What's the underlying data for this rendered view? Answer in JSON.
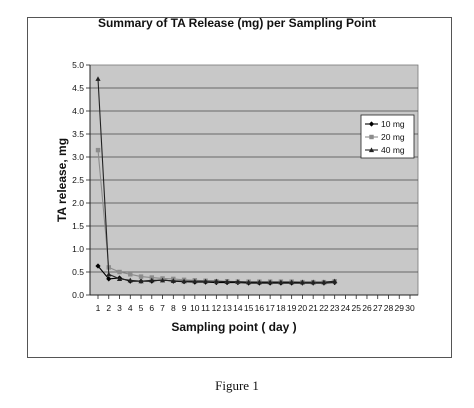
{
  "figure_caption": "Figure 1",
  "chart_data": {
    "type": "line",
    "title": "Summary of TA Release (mg) per Sampling Point",
    "xlabel": "Sampling point ( day )",
    "ylabel": "TA release, mg",
    "xlim": [
      1,
      30
    ],
    "x_ticks": [
      "1",
      "2",
      "3",
      "4",
      "5",
      "6",
      "7",
      "8",
      "9",
      "10",
      "11",
      "12",
      "13",
      "14",
      "15",
      "16",
      "17",
      "18",
      "19",
      "20",
      "21",
      "22",
      "23",
      "24",
      "25",
      "26",
      "27",
      "28",
      "29",
      "30"
    ],
    "ylim": [
      0,
      5
    ],
    "y_ticks": [
      "0.0",
      "0.5",
      "1.0",
      "1.5",
      "2.0",
      "2.5",
      "3.0",
      "3.5",
      "4.0",
      "4.5",
      "5.0"
    ],
    "grid": "horizontal",
    "legend_position": "right",
    "x": [
      1,
      2,
      3,
      4,
      5,
      6,
      7,
      8,
      9,
      10,
      11,
      12,
      13,
      14,
      15,
      16,
      17,
      18,
      19,
      20,
      21,
      22,
      23
    ],
    "series": [
      {
        "name": "10 mg",
        "marker": "diamond",
        "color": "#000000",
        "values": [
          0.63,
          0.35,
          0.37,
          0.3,
          0.3,
          0.3,
          0.33,
          0.3,
          0.29,
          0.28,
          0.28,
          0.27,
          0.27,
          0.27,
          0.26,
          0.26,
          0.26,
          0.26,
          0.26,
          0.26,
          0.26,
          0.26,
          0.27
        ]
      },
      {
        "name": "20 mg",
        "marker": "square",
        "color": "#8c8c8c",
        "values": [
          3.15,
          0.6,
          0.5,
          0.45,
          0.4,
          0.38,
          0.36,
          0.35,
          0.33,
          0.32,
          0.31,
          0.3,
          0.3,
          0.29,
          0.29,
          0.29,
          0.29,
          0.29,
          0.29,
          0.28,
          0.28,
          0.28,
          0.3
        ]
      },
      {
        "name": "40 mg",
        "marker": "triangle",
        "color": "#222222",
        "values": [
          4.7,
          0.45,
          0.35,
          0.32,
          0.3,
          0.32,
          0.32,
          0.31,
          0.3,
          0.3,
          0.3,
          0.3,
          0.29,
          0.29,
          0.28,
          0.28,
          0.28,
          0.28,
          0.28,
          0.28,
          0.28,
          0.28,
          0.3
        ]
      }
    ]
  }
}
